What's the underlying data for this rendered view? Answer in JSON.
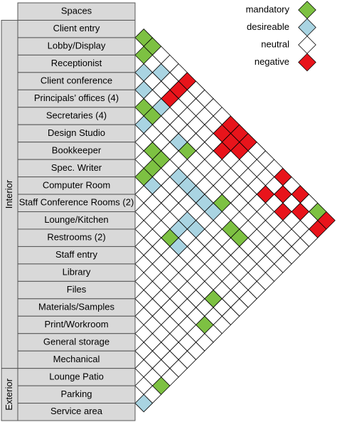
{
  "header": "Spaces",
  "groups": [
    {
      "label": "Interior",
      "count": 20
    },
    {
      "label": "Exterior",
      "count": 3
    }
  ],
  "rows": [
    "Client entry",
    "Lobby/Display",
    "Receptionist",
    "Client conference",
    "Principals’ offices (4)",
    "Secretaries (4)",
    "Design Studio",
    "Bookkeeper",
    "Spec. Writer",
    "Computer Room",
    "Staff Conference Rooms (2)",
    "Lounge/Kitchen",
    "Restrooms (2)",
    "Staff entry",
    "Library",
    "Files",
    "Materials/Samples",
    "Print/Workroom",
    "General storage",
    "Mechanical",
    "Lounge Patio",
    "Parking",
    "Service area"
  ],
  "legend": [
    {
      "label": "mandatory",
      "color": "#7dc142"
    },
    {
      "label": "desireable",
      "color": "#a9d4e2"
    },
    {
      "label": "neutral",
      "color": "#ffffff"
    },
    {
      "label": "negative",
      "color": "#e8141b"
    }
  ],
  "relations": [
    {
      "pair": [
        0,
        1
      ],
      "rating": 0
    },
    {
      "pair": [
        0,
        2
      ],
      "rating": 0
    },
    {
      "pair": [
        1,
        2
      ],
      "rating": 0
    },
    {
      "pair": [
        2,
        3
      ],
      "rating": 1
    },
    {
      "pair": [
        1,
        4
      ],
      "rating": 1
    },
    {
      "pair": [
        3,
        4
      ],
      "rating": 1
    },
    {
      "pair": [
        0,
        6
      ],
      "rating": 3
    },
    {
      "pair": [
        1,
        6
      ],
      "rating": 3
    },
    {
      "pair": [
        2,
        6
      ],
      "rating": 3
    },
    {
      "pair": [
        4,
        5
      ],
      "rating": 0
    },
    {
      "pair": [
        4,
        6
      ],
      "rating": 0
    },
    {
      "pair": [
        3,
        6
      ],
      "rating": 1
    },
    {
      "pair": [
        5,
        6
      ],
      "rating": 1
    },
    {
      "pair": [
        0,
        11
      ],
      "rating": 3
    },
    {
      "pair": [
        1,
        11
      ],
      "rating": 3
    },
    {
      "pair": [
        0,
        12
      ],
      "rating": 3
    },
    {
      "pair": [
        1,
        12
      ],
      "rating": 3
    },
    {
      "pair": [
        2,
        12
      ],
      "rating": 3
    },
    {
      "pair": [
        0,
        13
      ],
      "rating": 3
    },
    {
      "pair": [
        1,
        13
      ],
      "rating": 3
    },
    {
      "pair": [
        6,
        8
      ],
      "rating": 0
    },
    {
      "pair": [
        4,
        10
      ],
      "rating": 0
    },
    {
      "pair": [
        4,
        9
      ],
      "rating": 1
    },
    {
      "pair": [
        6,
        9
      ],
      "rating": 0
    },
    {
      "pair": [
        7,
        9
      ],
      "rating": 0
    },
    {
      "pair": [
        8,
        9
      ],
      "rating": 0
    },
    {
      "pair": [
        8,
        10
      ],
      "rating": 1
    },
    {
      "pair": [
        6,
        11
      ],
      "rating": 1
    },
    {
      "pair": [
        6,
        12
      ],
      "rating": 1
    },
    {
      "pair": [
        6,
        13
      ],
      "rating": 1
    },
    {
      "pair": [
        6,
        14
      ],
      "rating": 1
    },
    {
      "pair": [
        5,
        15
      ],
      "rating": 0
    },
    {
      "pair": [
        6,
        15
      ],
      "rating": 1
    },
    {
      "pair": [
        6,
        17
      ],
      "rating": 0
    },
    {
      "pair": [
        6,
        18
      ],
      "rating": 0
    },
    {
      "pair": [
        8,
        14
      ],
      "rating": 1
    },
    {
      "pair": [
        8,
        15
      ],
      "rating": 1
    },
    {
      "pair": [
        9,
        14
      ],
      "rating": 1
    },
    {
      "pair": [
        10,
        14
      ],
      "rating": 0
    },
    {
      "pair": [
        10,
        15
      ],
      "rating": 1
    },
    {
      "pair": [
        0,
        17
      ],
      "rating": 3
    },
    {
      "pair": [
        2,
        17
      ],
      "rating": 3
    },
    {
      "pair": [
        1,
        18
      ],
      "rating": 3
    },
    {
      "pair": [
        0,
        19
      ],
      "rating": 3
    },
    {
      "pair": [
        2,
        19
      ],
      "rating": 3
    },
    {
      "pair": [
        1,
        20
      ],
      "rating": 3
    },
    {
      "pair": [
        0,
        21
      ],
      "rating": 0
    },
    {
      "pair": [
        0,
        22
      ],
      "rating": 3
    },
    {
      "pair": [
        1,
        22
      ],
      "rating": 3
    },
    {
      "pair": [
        11,
        20
      ],
      "rating": 0
    },
    {
      "pair": [
        13,
        21
      ],
      "rating": 0
    },
    {
      "pair": [
        19,
        22
      ],
      "rating": 0
    },
    {
      "pair": [
        21,
        22
      ],
      "rating": 1
    }
  ]
}
